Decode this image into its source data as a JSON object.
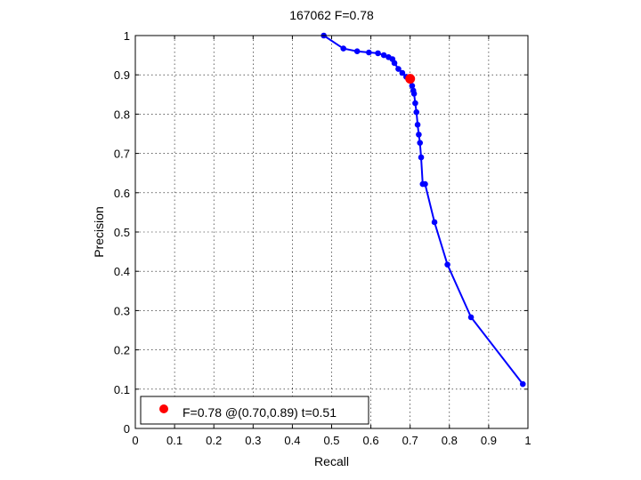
{
  "chart_data": {
    "type": "line",
    "title": "167062 F=0.78",
    "xlabel": "Recall",
    "ylabel": "Precision",
    "xlim": [
      0,
      1
    ],
    "ylim": [
      0,
      1
    ],
    "xticks": [
      "0",
      "0.1",
      "0.2",
      "0.3",
      "0.4",
      "0.5",
      "0.6",
      "0.7",
      "0.8",
      "0.9",
      "1"
    ],
    "yticks": [
      "0",
      "0.1",
      "0.2",
      "0.3",
      "0.4",
      "0.5",
      "0.6",
      "0.7",
      "0.8",
      "0.9",
      "1"
    ],
    "grid": true,
    "legend_position": "bottom-left",
    "series": [
      {
        "color": "#0000ff",
        "x": [
          0.48,
          0.53,
          0.565,
          0.595,
          0.618,
          0.633,
          0.645,
          0.655,
          0.66,
          0.67,
          0.68,
          0.69,
          0.7,
          0.705,
          0.708,
          0.71,
          0.713,
          0.716,
          0.719,
          0.722,
          0.725,
          0.728,
          0.732,
          0.738,
          0.762,
          0.795,
          0.855,
          0.987
        ],
        "y": [
          1.0,
          0.967,
          0.96,
          0.957,
          0.955,
          0.95,
          0.945,
          0.94,
          0.93,
          0.915,
          0.905,
          0.895,
          0.885,
          0.872,
          0.86,
          0.852,
          0.828,
          0.805,
          0.773,
          0.748,
          0.727,
          0.69,
          0.622,
          0.622,
          0.525,
          0.417,
          0.283,
          0.113
        ]
      }
    ],
    "best_point": {
      "x": 0.7,
      "y": 0.89,
      "color": "#ff0000"
    },
    "legend": {
      "label": "F=0.78 @(0.70,0.89) t=0.51",
      "color": "#ff0000"
    }
  }
}
